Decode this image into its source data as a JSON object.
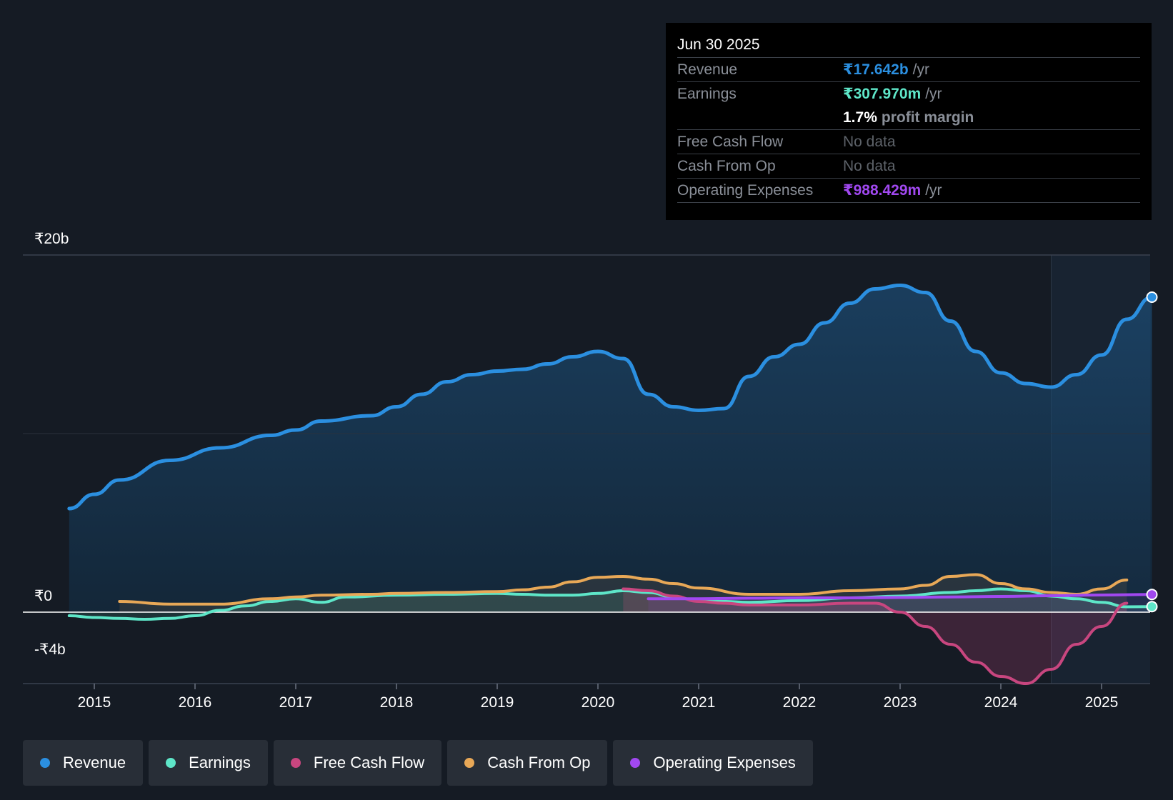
{
  "tooltip": {
    "date": "Jun 30 2025",
    "rows": [
      {
        "label": "Revenue",
        "value": "₹17.642b",
        "unit": "/yr"
      },
      {
        "label": "Earnings",
        "value": "₹307.970m",
        "unit": "/yr"
      },
      {
        "label": "",
        "value": "1.7%",
        "unit": "profit margin"
      },
      {
        "label": "Free Cash Flow",
        "value": "No data"
      },
      {
        "label": "Cash From Op",
        "value": "No data"
      },
      {
        "label": "Operating Expenses",
        "value": "₹988.429m",
        "unit": "/yr"
      }
    ]
  },
  "legend": [
    {
      "label": "Revenue",
      "color": "#2b8fe0"
    },
    {
      "label": "Earnings",
      "color": "#5ee6c8"
    },
    {
      "label": "Free Cash Flow",
      "color": "#c8467f"
    },
    {
      "label": "Cash From Op",
      "color": "#e8a857"
    },
    {
      "label": "Operating Expenses",
      "color": "#a148f0"
    }
  ],
  "chart_data": {
    "type": "line",
    "title": "",
    "xlabel": "",
    "ylabel": "",
    "y_tick_labels": [
      "₹20b",
      "₹0",
      "-₹4b"
    ],
    "ylim": [
      -4,
      20
    ],
    "xlim": [
      2014.75,
      2025.5
    ],
    "x_ticks": [
      2015,
      2016,
      2017,
      2018,
      2019,
      2020,
      2021,
      2022,
      2023,
      2024,
      2025
    ],
    "forecast_start": 2024.5,
    "series": [
      {
        "name": "Revenue",
        "color": "#2b8fe0",
        "x": [
          2014.75,
          2015.0,
          2015.25,
          2015.75,
          2016.25,
          2016.75,
          2017.0,
          2017.25,
          2017.75,
          2018.0,
          2018.25,
          2018.5,
          2018.75,
          2019.0,
          2019.25,
          2019.5,
          2019.75,
          2020.0,
          2020.25,
          2020.5,
          2020.75,
          2021.0,
          2021.25,
          2021.5,
          2021.75,
          2022.0,
          2022.25,
          2022.5,
          2022.75,
          2023.0,
          2023.25,
          2023.5,
          2023.75,
          2024.0,
          2024.25,
          2024.5,
          2024.75,
          2025.0,
          2025.25,
          2025.5
        ],
        "values": [
          5.8,
          6.6,
          7.4,
          8.5,
          9.2,
          9.9,
          10.2,
          10.7,
          11.0,
          11.5,
          12.2,
          12.9,
          13.3,
          13.5,
          13.6,
          13.9,
          14.3,
          14.6,
          14.2,
          12.2,
          11.5,
          11.3,
          11.4,
          13.2,
          14.3,
          15.0,
          16.2,
          17.3,
          18.1,
          18.3,
          17.9,
          16.3,
          14.6,
          13.4,
          12.8,
          12.6,
          13.3,
          14.4,
          16.4,
          17.64
        ]
      },
      {
        "name": "Earnings",
        "color": "#5ee6c8",
        "x": [
          2014.75,
          2015.0,
          2015.25,
          2015.5,
          2015.75,
          2016.0,
          2016.25,
          2016.5,
          2016.75,
          2017.0,
          2017.25,
          2017.5,
          2018.0,
          2018.5,
          2019.0,
          2019.25,
          2019.5,
          2019.75,
          2020.0,
          2020.25,
          2020.5,
          2020.75,
          2021.0,
          2021.25,
          2021.5,
          2022.0,
          2022.5,
          2023.0,
          2023.5,
          2023.75,
          2024.0,
          2024.25,
          2024.5,
          2024.75,
          2025.0,
          2025.25,
          2025.5
        ],
        "values": [
          -0.2,
          -0.3,
          -0.35,
          -0.4,
          -0.35,
          -0.2,
          0.1,
          0.35,
          0.6,
          0.75,
          0.55,
          0.85,
          0.95,
          1.0,
          1.05,
          1.0,
          0.95,
          0.95,
          1.05,
          1.2,
          1.1,
          0.85,
          0.65,
          0.6,
          0.55,
          0.65,
          0.8,
          0.9,
          1.1,
          1.2,
          1.3,
          1.2,
          0.9,
          0.75,
          0.55,
          0.3,
          0.31
        ]
      },
      {
        "name": "Free Cash Flow",
        "color": "#c8467f",
        "x": [
          2020.25,
          2020.5,
          2020.75,
          2021.0,
          2021.25,
          2021.5,
          2022.0,
          2022.5,
          2022.75,
          2023.0,
          2023.25,
          2023.5,
          2023.75,
          2024.0,
          2024.25,
          2024.5,
          2024.75,
          2025.0,
          2025.25
        ],
        "values": [
          1.3,
          1.2,
          0.9,
          0.6,
          0.5,
          0.4,
          0.4,
          0.5,
          0.5,
          0.0,
          -0.8,
          -1.8,
          -2.8,
          -3.6,
          -4.0,
          -3.2,
          -1.8,
          -0.8,
          0.5
        ]
      },
      {
        "name": "Cash From Op",
        "color": "#e8a857",
        "x": [
          2015.25,
          2015.75,
          2016.25,
          2016.75,
          2017.0,
          2017.25,
          2017.75,
          2018.0,
          2018.5,
          2019.0,
          2019.25,
          2019.5,
          2019.75,
          2020.0,
          2020.25,
          2020.5,
          2020.75,
          2021.0,
          2021.5,
          2022.0,
          2022.5,
          2023.0,
          2023.25,
          2023.5,
          2023.75,
          2024.0,
          2024.25,
          2024.5,
          2024.75,
          2025.0,
          2025.25
        ],
        "values": [
          0.6,
          0.45,
          0.45,
          0.75,
          0.85,
          0.95,
          1.0,
          1.05,
          1.1,
          1.15,
          1.25,
          1.4,
          1.7,
          1.95,
          2.0,
          1.85,
          1.6,
          1.35,
          1.0,
          1.0,
          1.2,
          1.3,
          1.5,
          2.0,
          2.1,
          1.6,
          1.3,
          1.1,
          1.0,
          1.3,
          1.8
        ]
      },
      {
        "name": "Operating Expenses",
        "color": "#a148f0",
        "x": [
          2020.5,
          2021.0,
          2021.5,
          2022.0,
          2022.5,
          2023.0,
          2023.5,
          2024.0,
          2024.5,
          2025.0,
          2025.5
        ],
        "values": [
          0.75,
          0.75,
          0.78,
          0.8,
          0.8,
          0.82,
          0.85,
          0.88,
          0.92,
          0.96,
          0.99
        ]
      }
    ]
  }
}
